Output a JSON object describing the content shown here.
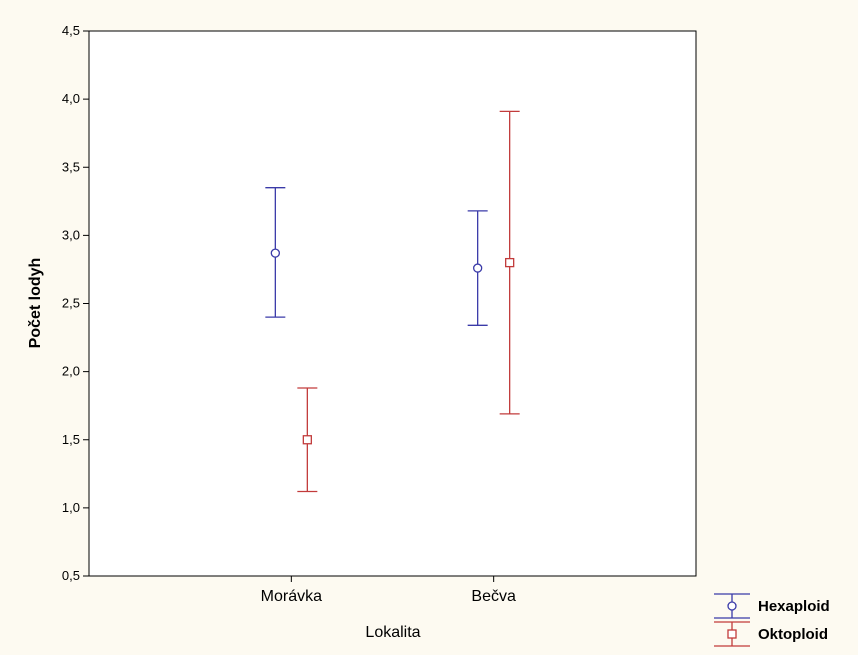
{
  "chart_data": {
    "type": "scatter",
    "title": "",
    "xlabel": "Lokalita",
    "ylabel": "Počet lodyh",
    "categories": [
      "Morávka",
      "Bečva"
    ],
    "ylim": [
      0.5,
      4.5
    ],
    "yticks": [
      "0,5",
      "1,0",
      "1,5",
      "2,0",
      "2,5",
      "3,0",
      "3,5",
      "4,0",
      "4,5"
    ],
    "grid": false,
    "legend_position": "bottom-right",
    "series": [
      {
        "name": "Hexaploid",
        "color": "#3a3aa8",
        "marker": "circle",
        "values": [
          2.87,
          2.76
        ],
        "lower": [
          2.4,
          2.34
        ],
        "upper": [
          3.35,
          3.18
        ]
      },
      {
        "name": "Oktoploid",
        "color": "#c23b3b",
        "marker": "square",
        "values": [
          1.5,
          2.8
        ],
        "lower": [
          1.12,
          1.69
        ],
        "upper": [
          1.88,
          3.91
        ]
      }
    ]
  }
}
